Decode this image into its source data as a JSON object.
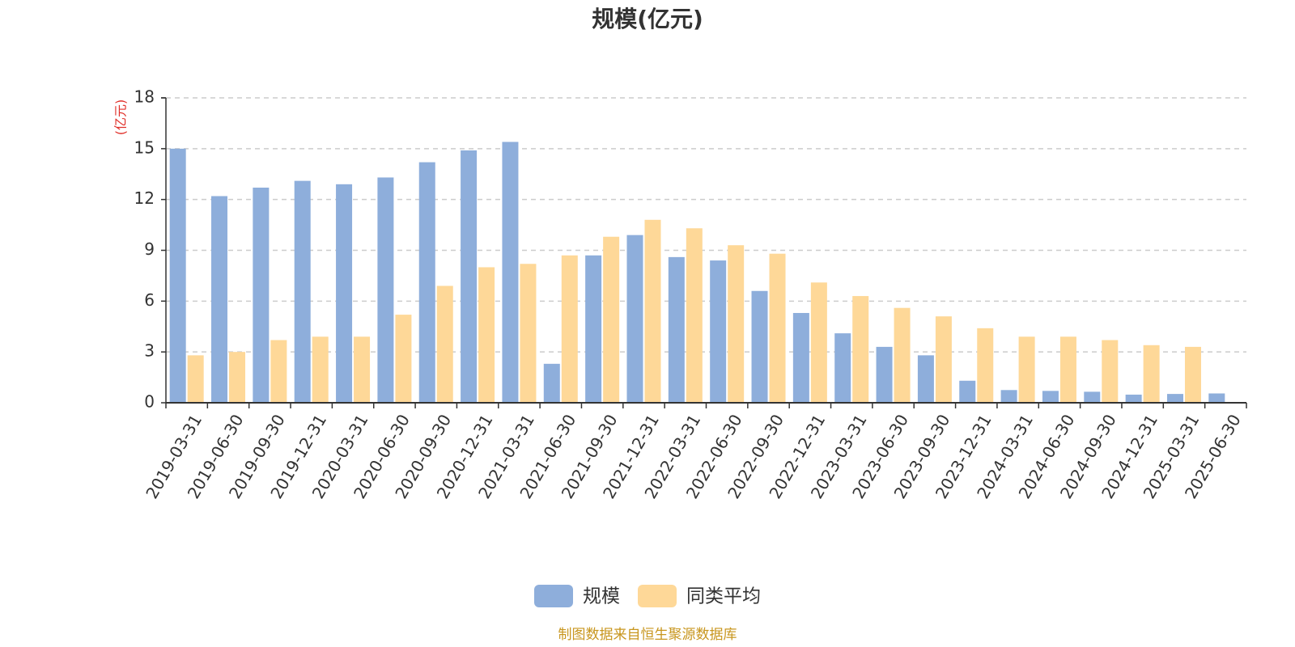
{
  "chart_data": {
    "type": "bar",
    "title": "规模(亿元)",
    "ylabel": "(亿元)",
    "ylim": [
      0,
      18
    ],
    "yticks": [
      0,
      3,
      6,
      9,
      12,
      15,
      18
    ],
    "grid": true,
    "legend_position": "bottom",
    "categories": [
      "2019-03-31",
      "2019-06-30",
      "2019-09-30",
      "2019-12-31",
      "2020-03-31",
      "2020-06-30",
      "2020-09-30",
      "2020-12-31",
      "2021-03-31",
      "2021-06-30",
      "2021-09-30",
      "2021-12-31",
      "2022-03-31",
      "2022-06-30",
      "2022-09-30",
      "2022-12-31",
      "2023-03-31",
      "2023-06-30",
      "2023-09-30",
      "2023-12-31",
      "2024-03-31",
      "2024-06-30",
      "2024-09-30",
      "2024-12-31",
      "2025-03-31",
      "2025-06-30"
    ],
    "series": [
      {
        "name": "规模",
        "color": "#8eaedb",
        "values": [
          15.0,
          12.2,
          12.7,
          13.1,
          12.9,
          13.3,
          14.2,
          14.9,
          15.4,
          2.3,
          8.7,
          9.9,
          8.6,
          8.4,
          6.6,
          5.3,
          4.1,
          3.3,
          2.8,
          1.3,
          0.75,
          0.7,
          0.65,
          0.48,
          0.52,
          0.55
        ]
      },
      {
        "name": "同类平均",
        "color": "#fed898",
        "values": [
          2.8,
          3.0,
          3.7,
          3.9,
          3.9,
          5.2,
          6.9,
          8.0,
          8.2,
          8.7,
          9.8,
          10.8,
          10.3,
          9.3,
          8.8,
          7.1,
          6.3,
          5.6,
          5.1,
          4.4,
          3.9,
          3.9,
          3.7,
          3.4,
          3.3,
          null
        ]
      }
    ]
  },
  "footer": {
    "source_text": "制图数据来自恒生聚源数据库"
  }
}
